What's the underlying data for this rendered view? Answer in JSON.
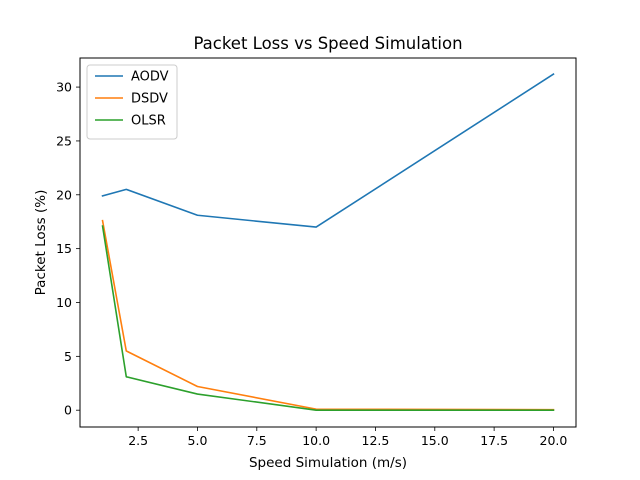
{
  "chart_data": {
    "type": "line",
    "title": "Packet Loss vs Speed Simulation",
    "xlabel": "Speed Simulation  (m/s)",
    "ylabel": "Packet Loss (%)",
    "xlim": [
      0.05,
      20.95
    ],
    "ylim": [
      -1.56,
      32.7
    ],
    "xticks": [
      2.5,
      5.0,
      7.5,
      10.0,
      12.5,
      15.0,
      17.5,
      20.0
    ],
    "xtick_labels": [
      "2.5",
      "5.0",
      "7.5",
      "10.0",
      "12.5",
      "15.0",
      "17.5",
      "20.0"
    ],
    "yticks": [
      0,
      5,
      10,
      15,
      20,
      25,
      30
    ],
    "ytick_labels": [
      "0",
      "5",
      "10",
      "15",
      "20",
      "25",
      "30"
    ],
    "x": [
      1,
      2,
      5,
      10,
      20
    ],
    "series": [
      {
        "name": "AODV",
        "color": "#1f77b4",
        "values": [
          19.9,
          20.5,
          18.1,
          17.0,
          31.2
        ]
      },
      {
        "name": "DSDV",
        "color": "#ff7f0e",
        "values": [
          17.6,
          5.5,
          2.2,
          0.1,
          0.05
        ]
      },
      {
        "name": "OLSR",
        "color": "#2ca02c",
        "values": [
          17.1,
          3.1,
          1.5,
          0.0,
          0.0
        ]
      }
    ],
    "legend_position": "upper left",
    "grid": false
  }
}
